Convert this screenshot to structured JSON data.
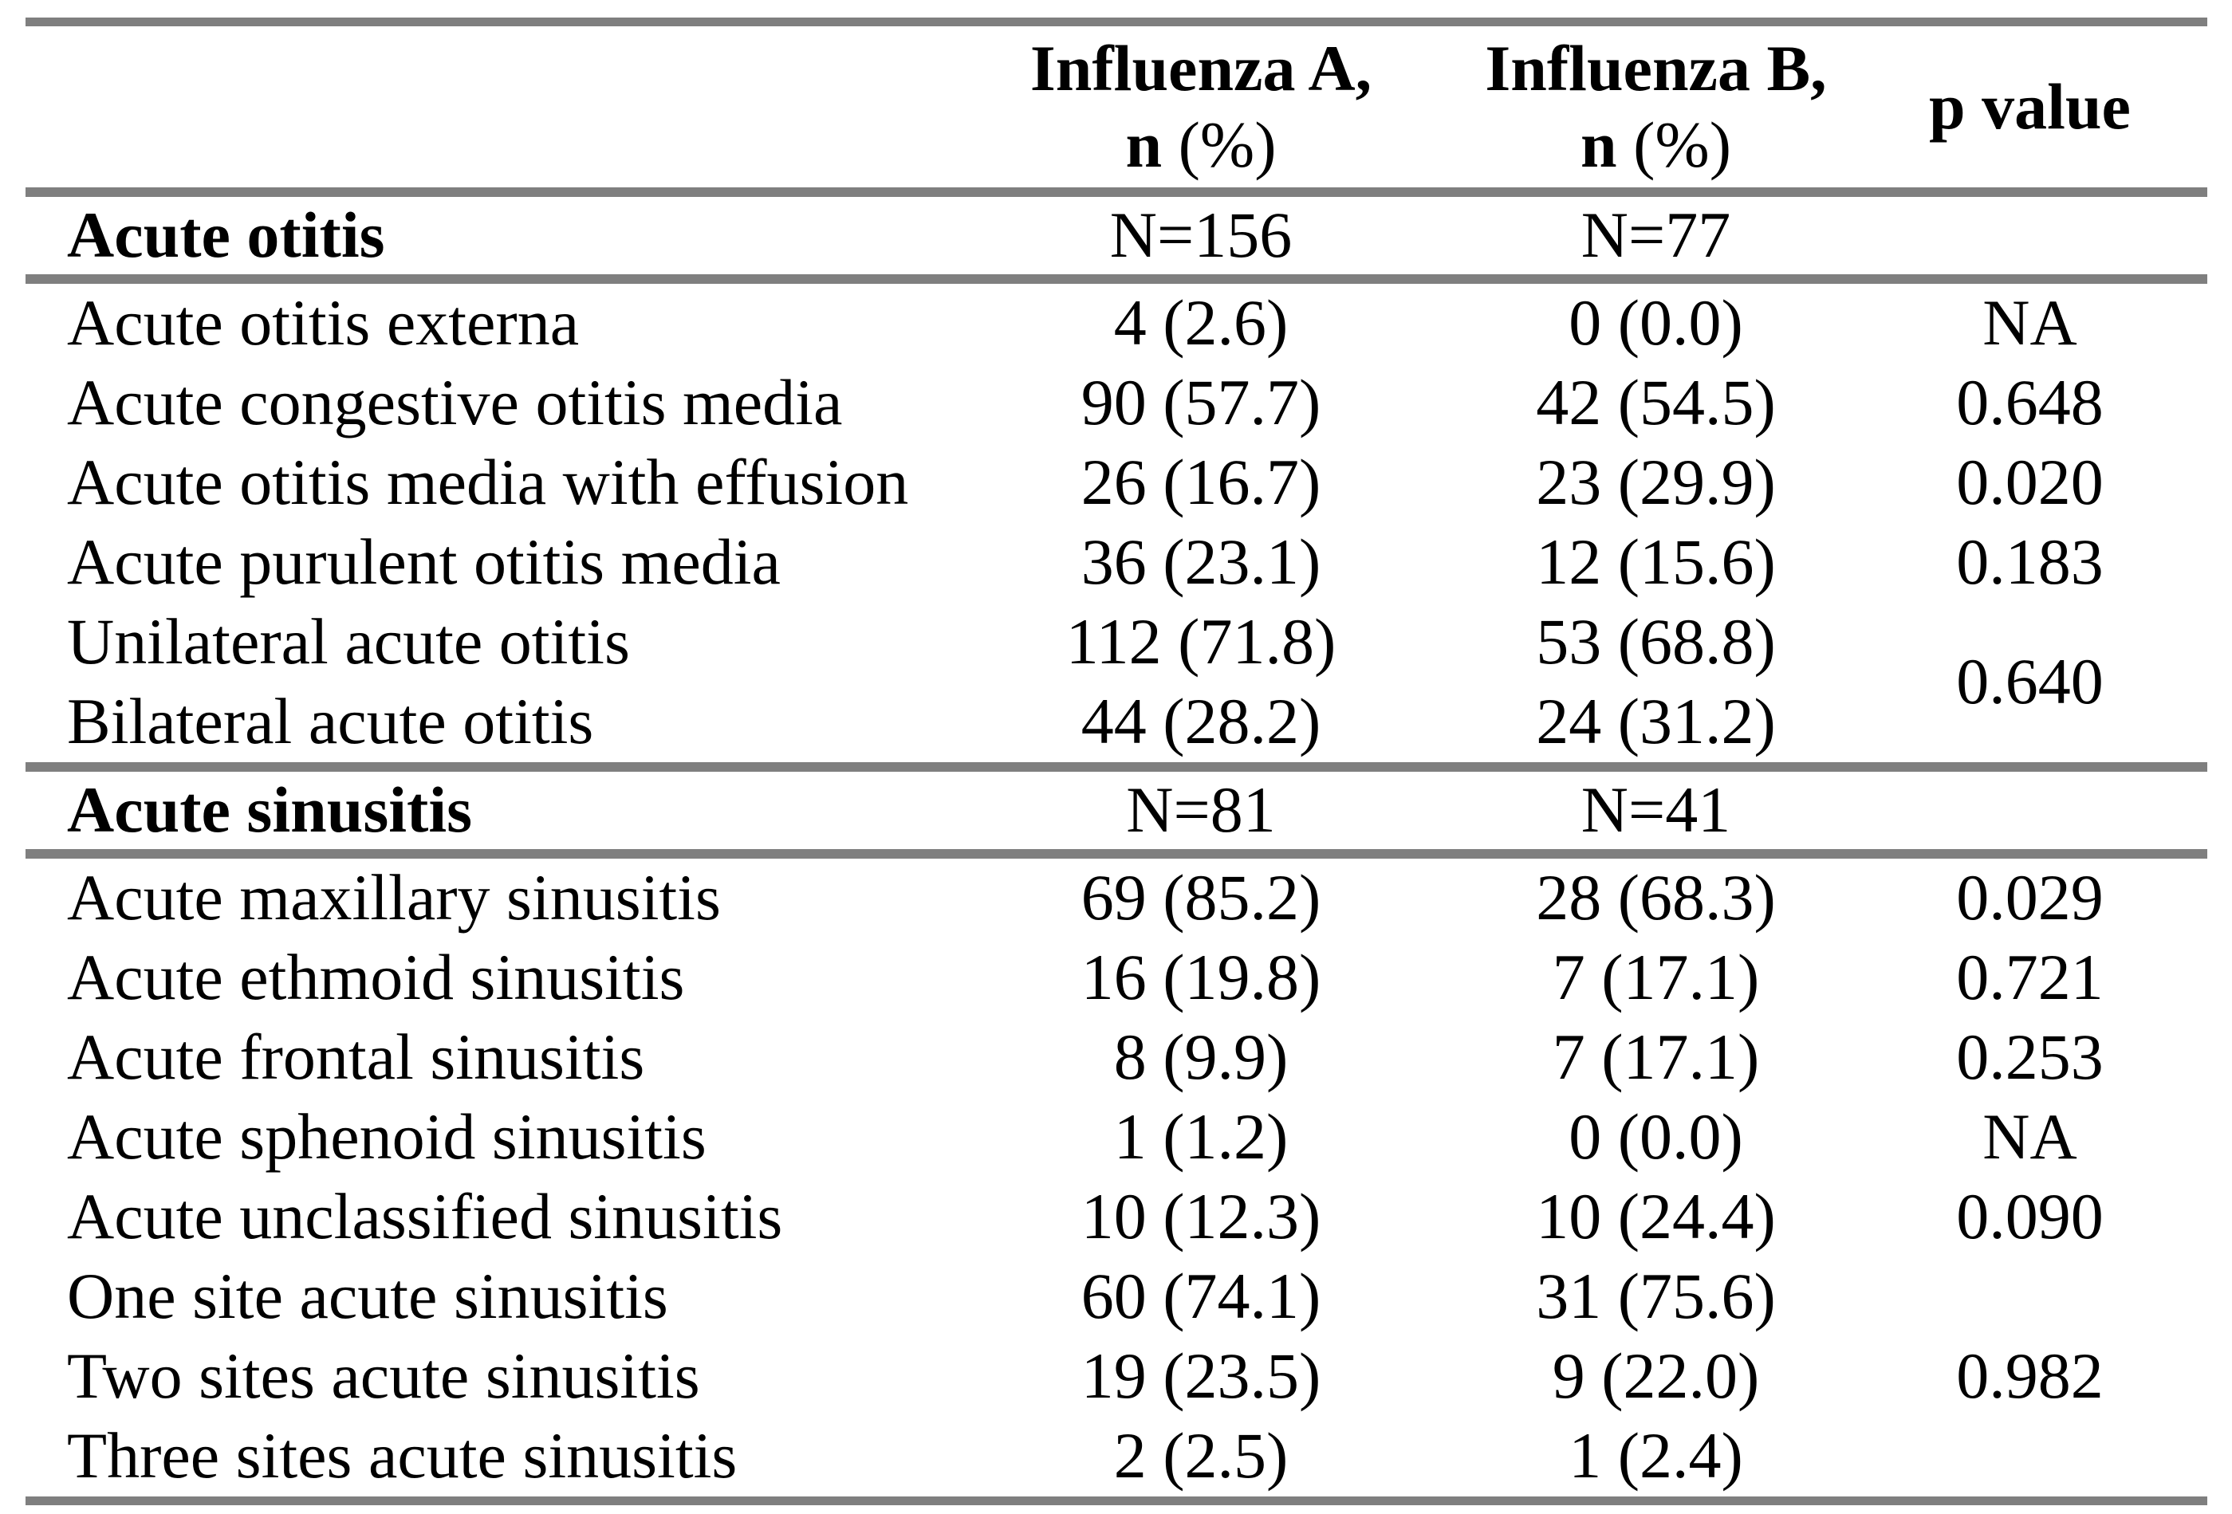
{
  "colors": {
    "rule_gray": "#7f7f7f",
    "text": "#000000",
    "background": "#ffffff"
  },
  "header": {
    "row_label": "",
    "influenza_a": {
      "title": "Influenza A,",
      "n": "n",
      "pct": " (%)"
    },
    "influenza_b": {
      "title": "Influenza B,",
      "n": "n",
      "pct": " (%)"
    },
    "p_value": "p value"
  },
  "sections": [
    {
      "title": "Acute otitis",
      "n_a": "N=156",
      "n_b": "N=77",
      "p": "",
      "rows": [
        {
          "label": "Acute otitis externa",
          "a": "4 (2.6)",
          "b": "0 (0.0)",
          "p": "NA"
        },
        {
          "label": "Acute congestive otitis media",
          "a": "90 (57.7)",
          "b": "42 (54.5)",
          "p": "0.648"
        },
        {
          "label": "Acute otitis media with effusion",
          "a": "26 (16.7)",
          "b": "23 (29.9)",
          "p": "0.020"
        },
        {
          "label": "Acute purulent otitis media",
          "a": "36 (23.1)",
          "b": "12 (15.6)",
          "p": "0.183"
        },
        {
          "label": "Unilateral acute otitis",
          "a": "112 (71.8)",
          "b": "53 (68.8)",
          "p": "0.640"
        },
        {
          "label": "Bilateral acute otitis",
          "a": "44 (28.2)",
          "b": "24 (31.2)",
          "p": null
        }
      ]
    },
    {
      "title": "Acute sinusitis",
      "n_a": "N=81",
      "n_b": "N=41",
      "p": "",
      "rows": [
        {
          "label": "Acute maxillary sinusitis",
          "a": "69 (85.2)",
          "b": "28 (68.3)",
          "p": "0.029"
        },
        {
          "label": "Acute ethmoid sinusitis",
          "a": "16 (19.8)",
          "b": "7 (17.1)",
          "p": "0.721"
        },
        {
          "label": "Acute frontal sinusitis",
          "a": "8 (9.9)",
          "b": "7 (17.1)",
          "p": "0.253"
        },
        {
          "label": "Acute sphenoid sinusitis",
          "a": "1 (1.2)",
          "b": "0 (0.0)",
          "p": "NA"
        },
        {
          "label": "Acute unclassified sinusitis",
          "a": "10 (12.3)",
          "b": "10 (24.4)",
          "p": "0.090"
        },
        {
          "label": "One site acute sinusitis",
          "a": "60 (74.1)",
          "b": "31 (75.6)",
          "p": "0.982"
        },
        {
          "label": "Two sites acute sinusitis",
          "a": "19 (23.5)",
          "b": "9 (22.0)",
          "p": null
        },
        {
          "label": "Three sites acute sinusitis",
          "a": "2 (2.5)",
          "b": "1 (2.4)",
          "p": null
        }
      ]
    }
  ]
}
